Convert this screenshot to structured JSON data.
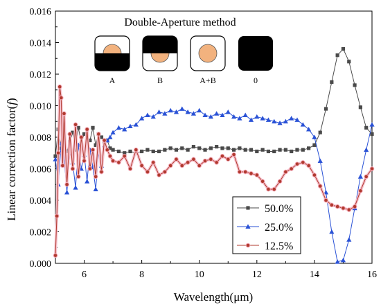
{
  "chart_data": {
    "type": "line",
    "title": "",
    "xlabel": "Wavelength(μm)",
    "ylabel": "Linear correction factor(f)",
    "ylabel_plain": "Linear correction factor(",
    "ylabel_var": "f",
    "ylabel_close": ")",
    "xlim": [
      5,
      16
    ],
    "ylim": [
      0,
      0.016
    ],
    "x_ticks": [
      6,
      8,
      10,
      12,
      14,
      16
    ],
    "x_tick_labels": [
      "6",
      "8",
      "10",
      "12",
      "14",
      "16"
    ],
    "y_ticks": [
      0,
      0.002,
      0.004,
      0.006,
      0.008,
      0.01,
      0.012,
      0.014,
      0.016
    ],
    "y_tick_labels": [
      "0.000",
      "0.002",
      "0.004",
      "0.006",
      "0.008",
      "0.010",
      "0.012",
      "0.014",
      "0.016"
    ],
    "legend_position": "bottom-right",
    "inset": {
      "title": "Double-Aperture method",
      "panels": [
        {
          "label": "A",
          "mode": "bottom-blocked"
        },
        {
          "label": "B",
          "mode": "top-blocked"
        },
        {
          "label": "A+B",
          "mode": "open"
        },
        {
          "label": "0",
          "mode": "closed"
        }
      ]
    },
    "series": [
      {
        "name": "50.0%",
        "color": "#4a4a4a",
        "marker": "square",
        "x": [
          5.0,
          5.1,
          5.2,
          5.3,
          5.4,
          5.5,
          5.6,
          5.7,
          5.8,
          5.9,
          6.0,
          6.1,
          6.2,
          6.3,
          6.4,
          6.5,
          6.6,
          6.7,
          6.8,
          6.9,
          7.0,
          7.2,
          7.4,
          7.6,
          7.8,
          8.0,
          8.2,
          8.4,
          8.6,
          8.8,
          9.0,
          9.2,
          9.4,
          9.6,
          9.8,
          10.0,
          10.2,
          10.4,
          10.6,
          10.8,
          11.0,
          11.2,
          11.4,
          11.6,
          11.8,
          12.0,
          12.2,
          12.4,
          12.6,
          12.8,
          13.0,
          13.2,
          13.4,
          13.6,
          13.8,
          14.0,
          14.2,
          14.4,
          14.6,
          14.8,
          15.0,
          15.2,
          15.4,
          15.6,
          15.8,
          16.0
        ],
        "y": [
          0.0068,
          0.0085,
          0.0073,
          0.0083,
          0.0071,
          0.0077,
          0.0083,
          0.0072,
          0.0086,
          0.0076,
          0.0082,
          0.008,
          0.0078,
          0.0086,
          0.0075,
          0.0082,
          0.008,
          0.0077,
          0.0078,
          0.0073,
          0.0072,
          0.0071,
          0.007,
          0.0071,
          0.007,
          0.0071,
          0.0072,
          0.0071,
          0.0071,
          0.0072,
          0.0073,
          0.0072,
          0.0073,
          0.0072,
          0.0074,
          0.0073,
          0.0072,
          0.0073,
          0.0074,
          0.0073,
          0.0073,
          0.0072,
          0.0073,
          0.0072,
          0.0072,
          0.0071,
          0.0072,
          0.0071,
          0.0071,
          0.0072,
          0.0072,
          0.0071,
          0.0072,
          0.0072,
          0.0073,
          0.0075,
          0.0083,
          0.0098,
          0.0115,
          0.0132,
          0.0136,
          0.0128,
          0.0113,
          0.0099,
          0.0086,
          0.0082
        ]
      },
      {
        "name": "25.0%",
        "color": "#2a52d6",
        "marker": "triangle",
        "x": [
          5.0,
          5.1,
          5.2,
          5.3,
          5.4,
          5.5,
          5.6,
          5.7,
          5.8,
          5.9,
          6.0,
          6.1,
          6.2,
          6.3,
          6.4,
          6.5,
          6.6,
          6.7,
          6.8,
          6.9,
          7.0,
          7.2,
          7.4,
          7.6,
          7.8,
          8.0,
          8.2,
          8.4,
          8.6,
          8.8,
          9.0,
          9.2,
          9.4,
          9.6,
          9.8,
          10.0,
          10.2,
          10.4,
          10.6,
          10.8,
          11.0,
          11.2,
          11.4,
          11.6,
          11.8,
          12.0,
          12.2,
          12.4,
          12.6,
          12.8,
          13.0,
          13.2,
          13.4,
          13.6,
          13.8,
          14.0,
          14.2,
          14.4,
          14.6,
          14.8,
          15.0,
          15.2,
          15.4,
          15.6,
          15.8,
          16.0
        ],
        "y": [
          0.0066,
          0.005,
          0.0076,
          0.0068,
          0.0045,
          0.007,
          0.0064,
          0.0048,
          0.0075,
          0.006,
          0.0069,
          0.0052,
          0.0072,
          0.0061,
          0.0047,
          0.007,
          0.0062,
          0.0075,
          0.0078,
          0.008,
          0.0083,
          0.0086,
          0.0085,
          0.0087,
          0.0088,
          0.0092,
          0.0094,
          0.0093,
          0.0096,
          0.0095,
          0.0097,
          0.0096,
          0.0098,
          0.0096,
          0.0095,
          0.0097,
          0.0094,
          0.0093,
          0.0095,
          0.0094,
          0.0096,
          0.0093,
          0.0092,
          0.0094,
          0.0091,
          0.0093,
          0.0092,
          0.0091,
          0.009,
          0.0089,
          0.009,
          0.0092,
          0.0091,
          0.0088,
          0.0085,
          0.008,
          0.0065,
          0.0045,
          0.002,
          0.0001,
          0.0002,
          0.0015,
          0.0035,
          0.0055,
          0.0072,
          0.0088
        ]
      },
      {
        "name": "12.5%",
        "color": "#b03a2e",
        "marker": "circle",
        "x": [
          5.0,
          5.05,
          5.1,
          5.15,
          5.2,
          5.25,
          5.3,
          5.4,
          5.5,
          5.6,
          5.7,
          5.8,
          5.9,
          6.0,
          6.1,
          6.2,
          6.3,
          6.4,
          6.5,
          6.6,
          6.7,
          6.8,
          6.9,
          7.0,
          7.2,
          7.4,
          7.6,
          7.8,
          8.0,
          8.2,
          8.4,
          8.6,
          8.8,
          9.0,
          9.2,
          9.4,
          9.6,
          9.8,
          10.0,
          10.2,
          10.4,
          10.6,
          10.8,
          11.0,
          11.2,
          11.4,
          11.6,
          11.8,
          12.0,
          12.2,
          12.4,
          12.6,
          12.8,
          13.0,
          13.2,
          13.4,
          13.6,
          13.8,
          14.0,
          14.2,
          14.4,
          14.6,
          14.8,
          15.0,
          15.2,
          15.4,
          15.6,
          15.8,
          16.0
        ],
        "y": [
          0.0005,
          0.003,
          0.007,
          0.0112,
          0.0105,
          0.0062,
          0.0095,
          0.005,
          0.0082,
          0.006,
          0.0088,
          0.0055,
          0.008,
          0.0065,
          0.0085,
          0.006,
          0.0072,
          0.0055,
          0.0082,
          0.0058,
          0.0078,
          0.0072,
          0.0068,
          0.0065,
          0.0064,
          0.0068,
          0.006,
          0.0072,
          0.0062,
          0.0058,
          0.0064,
          0.0056,
          0.0058,
          0.0062,
          0.0066,
          0.0062,
          0.0064,
          0.0066,
          0.0062,
          0.0065,
          0.0066,
          0.0064,
          0.0068,
          0.0066,
          0.0069,
          0.0058,
          0.0058,
          0.0057,
          0.0056,
          0.0052,
          0.0047,
          0.0047,
          0.0052,
          0.0058,
          0.006,
          0.0063,
          0.0064,
          0.0062,
          0.0056,
          0.0049,
          0.004,
          0.0037,
          0.0036,
          0.0035,
          0.0034,
          0.0036,
          0.0046,
          0.0055,
          0.006
        ]
      }
    ]
  }
}
